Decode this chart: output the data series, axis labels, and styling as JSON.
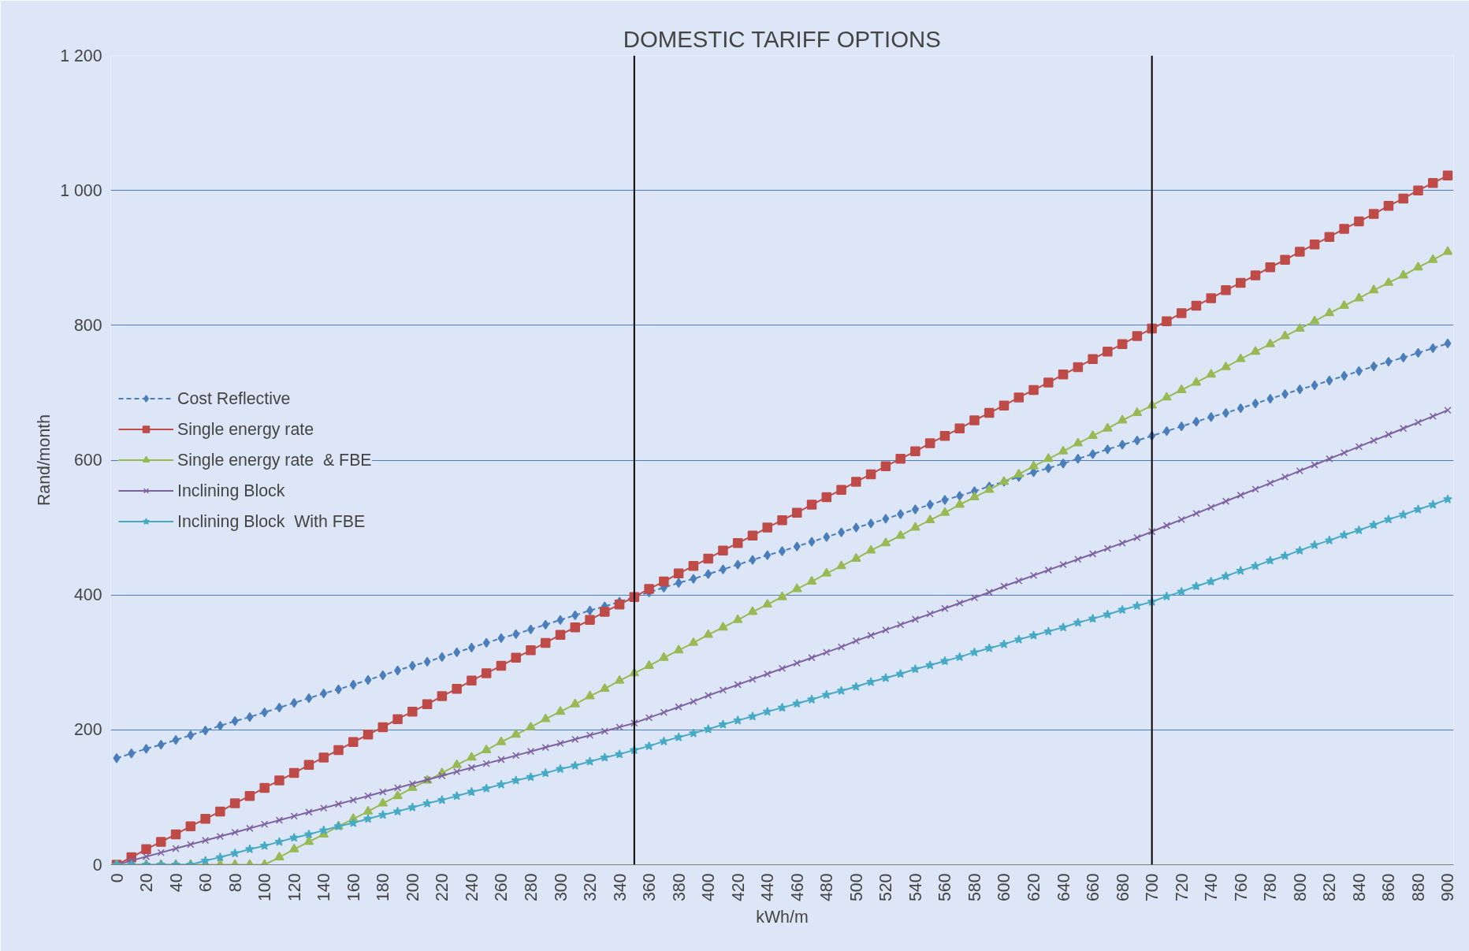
{
  "chart_data": {
    "type": "line",
    "title": "DOMESTIC TARIFF OPTIONS",
    "xlabel": "kWh/m",
    "ylabel": "Rand/month",
    "x": [
      0,
      10,
      20,
      30,
      40,
      50,
      60,
      70,
      80,
      90,
      100,
      110,
      120,
      130,
      140,
      150,
      160,
      170,
      180,
      190,
      200,
      210,
      220,
      230,
      240,
      250,
      260,
      270,
      280,
      290,
      300,
      310,
      320,
      330,
      340,
      350,
      360,
      370,
      380,
      390,
      400,
      410,
      420,
      430,
      440,
      450,
      460,
      470,
      480,
      490,
      500,
      510,
      520,
      530,
      540,
      550,
      560,
      570,
      580,
      590,
      600,
      610,
      620,
      630,
      640,
      650,
      660,
      670,
      680,
      690,
      700,
      710,
      720,
      730,
      740,
      750,
      760,
      770,
      780,
      790,
      800,
      810,
      820,
      830,
      840,
      850,
      860,
      870,
      880,
      890,
      900
    ],
    "xlim": [
      -4,
      904
    ],
    "xticks": [
      0,
      20,
      40,
      60,
      80,
      100,
      120,
      140,
      160,
      180,
      200,
      220,
      240,
      260,
      280,
      300,
      320,
      340,
      360,
      380,
      400,
      420,
      440,
      460,
      480,
      500,
      520,
      540,
      560,
      580,
      600,
      620,
      640,
      660,
      680,
      700,
      720,
      740,
      760,
      780,
      800,
      820,
      840,
      860,
      880,
      900
    ],
    "ylim": [
      0,
      1200
    ],
    "yticks": [
      0,
      200,
      400,
      600,
      800,
      {
        "value": 1000,
        "label": "1 000"
      },
      {
        "value": 1200,
        "label": "1 200"
      }
    ],
    "grid": "y",
    "legend": "left",
    "series": [
      {
        "name": "Cost Reflective",
        "color": "#4a7ebb",
        "marker": "diamond",
        "line_style": "dashed",
        "values": [
          158,
          165,
          172,
          178,
          185,
          192,
          199,
          206,
          213,
          219,
          226,
          233,
          240,
          247,
          254,
          260,
          267,
          274,
          281,
          288,
          295,
          301,
          308,
          315,
          322,
          329,
          336,
          342,
          349,
          356,
          363,
          370,
          377,
          383,
          390,
          397,
          404,
          411,
          418,
          424,
          431,
          438,
          445,
          452,
          459,
          465,
          472,
          479,
          486,
          493,
          500,
          506,
          513,
          520,
          527,
          534,
          541,
          547,
          554,
          561,
          568,
          575,
          582,
          588,
          595,
          602,
          609,
          616,
          623,
          629,
          636,
          643,
          650,
          657,
          664,
          670,
          677,
          684,
          691,
          698,
          705,
          711,
          718,
          725,
          732,
          739,
          746,
          752,
          759,
          766,
          773
        ]
      },
      {
        "name": "Single energy rate",
        "color": "#be4b48",
        "marker": "square",
        "line_style": "solid",
        "values": [
          0,
          11,
          23,
          34,
          45,
          57,
          68,
          79,
          91,
          102,
          114,
          125,
          136,
          148,
          159,
          170,
          182,
          193,
          204,
          216,
          227,
          238,
          250,
          261,
          273,
          284,
          295,
          307,
          318,
          329,
          341,
          352,
          363,
          375,
          386,
          397,
          409,
          420,
          432,
          443,
          454,
          466,
          477,
          488,
          500,
          511,
          522,
          534,
          545,
          556,
          568,
          579,
          591,
          602,
          613,
          625,
          636,
          647,
          659,
          670,
          681,
          693,
          704,
          715,
          727,
          738,
          750,
          761,
          772,
          784,
          795,
          806,
          818,
          829,
          840,
          852,
          863,
          874,
          886,
          897,
          909,
          920,
          931,
          943,
          954,
          965,
          977,
          988,
          1000,
          1011,
          1022
        ]
      },
      {
        "name": "Single energy rate  & FBE",
        "color": "#98b954",
        "marker": "triangle",
        "line_style": "solid",
        "values": [
          0,
          0,
          0,
          0,
          0,
          0,
          0,
          0,
          0,
          0,
          0,
          11,
          23,
          34,
          45,
          57,
          68,
          79,
          91,
          102,
          114,
          125,
          136,
          148,
          159,
          170,
          182,
          193,
          204,
          216,
          227,
          238,
          250,
          261,
          273,
          284,
          295,
          307,
          318,
          329,
          341,
          352,
          363,
          375,
          386,
          397,
          409,
          420,
          432,
          443,
          454,
          466,
          477,
          488,
          500,
          511,
          522,
          534,
          545,
          556,
          568,
          579,
          591,
          602,
          613,
          625,
          636,
          647,
          659,
          670,
          681,
          693,
          704,
          715,
          727,
          738,
          750,
          761,
          772,
          784,
          795,
          806,
          818,
          829,
          840,
          852,
          863,
          874,
          886,
          897,
          909
        ]
      },
      {
        "name": "Inclining Block",
        "color": "#7d60a0",
        "marker": "cross",
        "line_style": "solid",
        "values": [
          0,
          6,
          12,
          18,
          24,
          30,
          36,
          42,
          48,
          54,
          60,
          66,
          72,
          78,
          84,
          90,
          96,
          102,
          108,
          114,
          120,
          126,
          132,
          138,
          144,
          150,
          156,
          162,
          168,
          174,
          180,
          186,
          192,
          198,
          204,
          210,
          218,
          226,
          234,
          242,
          251,
          259,
          267,
          275,
          283,
          291,
          299,
          307,
          315,
          323,
          332,
          340,
          348,
          356,
          364,
          372,
          380,
          388,
          396,
          404,
          413,
          421,
          429,
          437,
          445,
          453,
          461,
          469,
          477,
          485,
          494,
          503,
          512,
          521,
          530,
          539,
          548,
          557,
          566,
          575,
          584,
          593,
          602,
          611,
          620,
          629,
          638,
          647,
          656,
          665,
          674
        ]
      },
      {
        "name": "Inclining Block  With FBE",
        "color": "#46aac5",
        "marker": "star",
        "line_style": "solid",
        "values": [
          0,
          0,
          0,
          0,
          0,
          0,
          6,
          11,
          17,
          23,
          28,
          34,
          40,
          45,
          51,
          57,
          62,
          68,
          74,
          79,
          85,
          91,
          96,
          102,
          108,
          113,
          119,
          125,
          130,
          136,
          142,
          147,
          153,
          159,
          164,
          170,
          176,
          183,
          189,
          195,
          201,
          208,
          214,
          220,
          227,
          233,
          239,
          245,
          252,
          258,
          264,
          271,
          277,
          283,
          290,
          296,
          302,
          308,
          315,
          321,
          327,
          334,
          340,
          346,
          352,
          359,
          365,
          371,
          378,
          384,
          390,
          398,
          405,
          413,
          420,
          428,
          436,
          443,
          451,
          458,
          466,
          474,
          481,
          489,
          496,
          504,
          512,
          519,
          527,
          534,
          542
        ]
      }
    ],
    "ref_lines": [
      {
        "axis": "x",
        "value": 350,
        "color": "#000000"
      },
      {
        "axis": "x",
        "value": 700,
        "color": "#000000"
      }
    ]
  }
}
